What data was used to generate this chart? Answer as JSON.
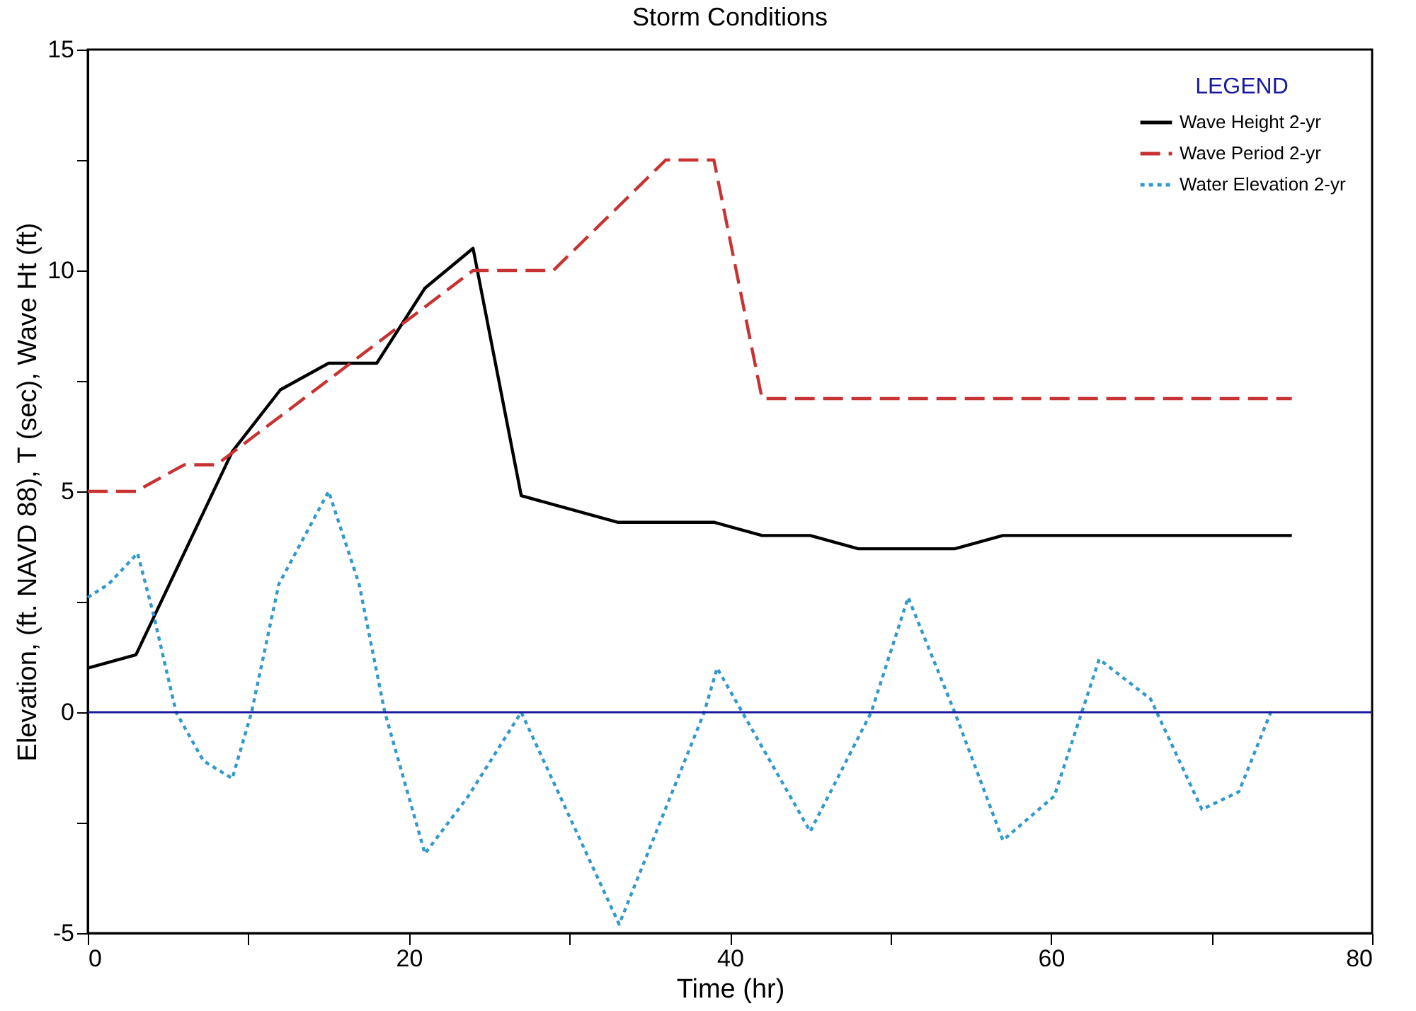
{
  "chart_data": {
    "type": "line",
    "title": "Storm Conditions",
    "xlabel": "Time (hr)",
    "ylabel": "Elevation, (ft. NAVD 88), T (sec), Wave Ht (ft)",
    "legend_title": "LEGEND",
    "legend": "top right",
    "grid": false,
    "marker": "none",
    "xlim": [
      0,
      80
    ],
    "ylim": [
      -5,
      15
    ],
    "xticks": [
      0,
      {
        "value": 10,
        "label": null
      },
      20,
      {
        "value": 30,
        "label": null
      },
      40,
      {
        "value": 50,
        "label": null
      },
      60,
      {
        "value": 70,
        "label": null
      },
      80
    ],
    "yticks": [
      -5,
      {
        "value": -2.5,
        "label": null
      },
      0,
      {
        "value": 2.5,
        "label": null
      },
      5,
      {
        "value": 7.5,
        "label": null
      },
      10,
      {
        "value": 12.5,
        "label": null
      },
      15
    ],
    "series": [
      {
        "name": "Wave Height 2-yr",
        "color": "#000000",
        "line_style": "solid",
        "x": [
          0,
          3,
          9,
          12,
          15,
          18,
          21,
          24,
          27,
          33,
          39,
          42,
          45,
          48,
          54,
          57,
          75
        ],
        "values": [
          1.0,
          1.3,
          5.9,
          7.3,
          7.9,
          7.9,
          9.6,
          10.5,
          4.9,
          4.3,
          4.3,
          4.0,
          4.0,
          3.7,
          3.7,
          4.0,
          4.0
        ]
      },
      {
        "name": "Wave Period 2-yr",
        "color": "#c83232",
        "line_style": "dashed",
        "x": [
          0,
          3,
          6,
          8,
          24,
          29,
          36,
          39,
          42,
          75
        ],
        "values": [
          5.0,
          5.0,
          5.6,
          5.6,
          10.0,
          10.0,
          12.5,
          12.5,
          7.1,
          7.1
        ]
      },
      {
        "name": "Water Elevation 2-yr",
        "color": "#3399cc",
        "line_style": "dotted",
        "x": [
          0,
          1.3,
          3.1,
          4.1,
          5.5,
          7.2,
          9,
          10.2,
          11.9,
          15,
          16.9,
          18.5,
          21,
          23.7,
          27,
          33.1,
          38.4,
          39.2,
          45,
          48.8,
          51.1,
          54,
          57,
          60.2,
          63,
          66.2,
          69.4,
          71.7,
          73.8
        ],
        "values": [
          2.6,
          2.9,
          3.6,
          2.2,
          0,
          -1.1,
          -1.5,
          0,
          2.9,
          5.0,
          2.9,
          0,
          -3.2,
          -1.9,
          0,
          -4.8,
          0,
          1.0,
          -2.7,
          0,
          2.6,
          0,
          -2.9,
          -1.9,
          1.2,
          0.3,
          -2.2,
          -1.8,
          0.1
        ]
      }
    ],
    "ref_lines": [
      {
        "axis": "y",
        "value": 0,
        "color": "#1a1aa0"
      }
    ]
  }
}
